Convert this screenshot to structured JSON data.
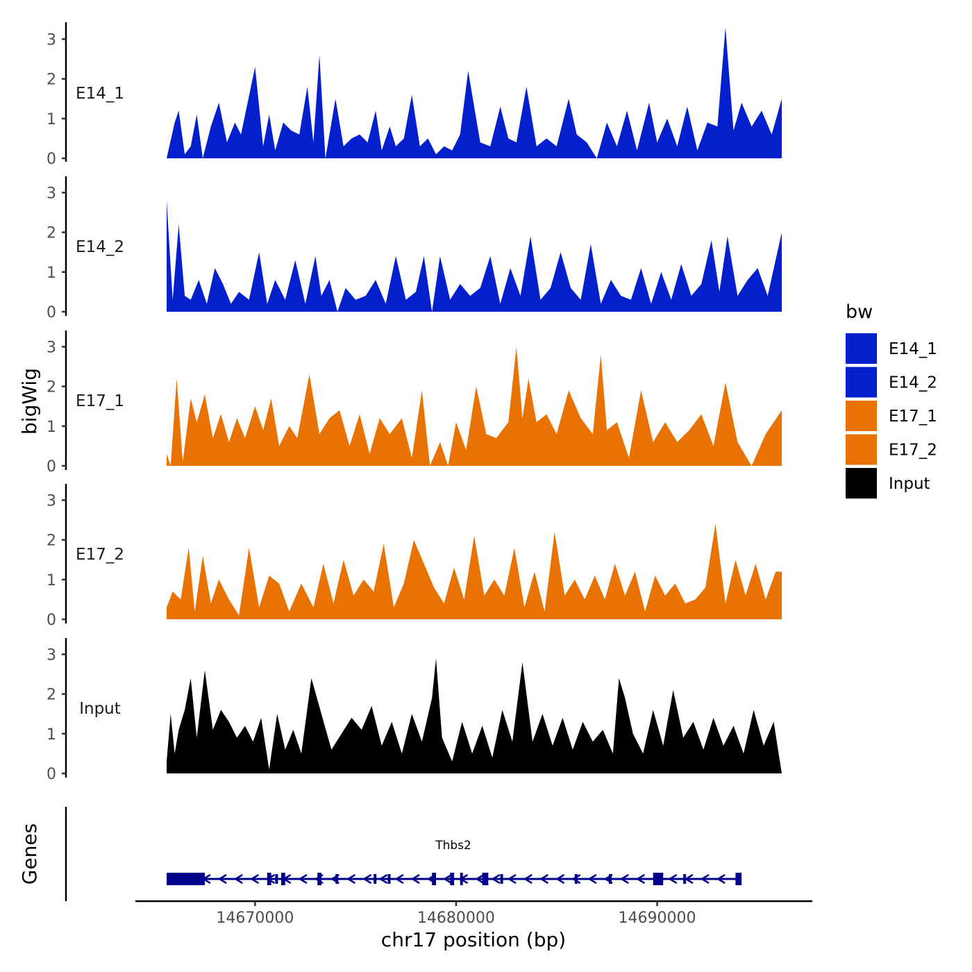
{
  "chart_data": {
    "type": "area",
    "x_min": 14665600,
    "x_max": 14696200,
    "ylim": [
      0,
      3.3
    ],
    "y_ticks": [
      0,
      1,
      2,
      3
    ],
    "x_ticks": [
      14670000,
      14680000,
      14690000
    ],
    "ylabel": "bigWig",
    "genes_label": "Genes",
    "xlabel": "chr17 position (bp)",
    "legend_title": "bw",
    "legend": [
      {
        "label": "E14_1",
        "color": "#0320CC"
      },
      {
        "label": "E14_2",
        "color": "#0320CC"
      },
      {
        "label": "E17_1",
        "color": "#E87204"
      },
      {
        "label": "E17_2",
        "color": "#E87204"
      },
      {
        "label": "Input",
        "color": "#000000"
      }
    ],
    "tracks": [
      {
        "name": "E14_1",
        "color": "#0320CC",
        "x": [
          14665600,
          14666000,
          14666200,
          14666500,
          14666800,
          14667100,
          14667400,
          14667800,
          14668200,
          14668600,
          14669000,
          14669300,
          14670000,
          14670400,
          14670700,
          14671000,
          14671400,
          14671800,
          14672200,
          14672600,
          14672900,
          14673200,
          14673500,
          14674000,
          14674400,
          14674800,
          14675200,
          14675600,
          14676000,
          14676300,
          14676700,
          14677000,
          14677400,
          14677800,
          14678200,
          14678600,
          14679000,
          14679400,
          14679800,
          14680200,
          14680600,
          14681200,
          14681700,
          14682200,
          14682600,
          14683000,
          14683500,
          14684000,
          14684500,
          14685000,
          14685600,
          14686000,
          14686500,
          14687000,
          14687500,
          14688000,
          14688500,
          14689000,
          14689600,
          14690000,
          14690500,
          14691000,
          14691500,
          14692000,
          14692500,
          14693000,
          14693400,
          14693800,
          14694200,
          14694700,
          14695200,
          14695700,
          14696200
        ],
        "values": [
          0.0,
          0.9,
          1.2,
          0.1,
          0.3,
          1.1,
          0.0,
          0.8,
          1.4,
          0.4,
          0.9,
          0.6,
          2.3,
          0.3,
          1.1,
          0.2,
          0.9,
          0.7,
          0.6,
          1.8,
          0.4,
          2.6,
          0.0,
          1.5,
          0.3,
          0.5,
          0.6,
          0.4,
          1.2,
          0.2,
          0.8,
          0.3,
          0.5,
          1.6,
          0.3,
          0.5,
          0.1,
          0.3,
          0.2,
          0.6,
          2.2,
          0.4,
          0.3,
          1.3,
          0.5,
          0.4,
          1.8,
          0.3,
          0.5,
          0.3,
          1.5,
          0.6,
          0.4,
          0.0,
          0.9,
          0.3,
          1.2,
          0.2,
          1.4,
          0.4,
          1.0,
          0.3,
          1.3,
          0.2,
          0.9,
          0.8,
          3.3,
          0.7,
          1.4,
          0.8,
          1.2,
          0.6,
          1.5
        ]
      },
      {
        "name": "E14_2",
        "color": "#0320CC",
        "x": [
          14665600,
          14665900,
          14666200,
          14666500,
          14666800,
          14667200,
          14667600,
          14668000,
          14668400,
          14668800,
          14669200,
          14669700,
          14670200,
          14670600,
          14671000,
          14671500,
          14672000,
          14672500,
          14673000,
          14673300,
          14673700,
          14674100,
          14674500,
          14675000,
          14675500,
          14676000,
          14676500,
          14677000,
          14677500,
          14678000,
          14678400,
          14678800,
          14679200,
          14679700,
          14680200,
          14680700,
          14681200,
          14681700,
          14682200,
          14682700,
          14683200,
          14683700,
          14684200,
          14684700,
          14685200,
          14685700,
          14686200,
          14686700,
          14687200,
          14687700,
          14688200,
          14688700,
          14689200,
          14689700,
          14690200,
          14690700,
          14691200,
          14691700,
          14692200,
          14692700,
          14693100,
          14693500,
          14694000,
          14694500,
          14695000,
          14695500,
          14696200
        ],
        "values": [
          2.8,
          0.3,
          2.2,
          0.4,
          0.3,
          0.8,
          0.2,
          1.1,
          0.7,
          0.2,
          0.5,
          0.3,
          1.5,
          0.2,
          0.8,
          0.3,
          1.3,
          0.2,
          1.4,
          0.4,
          0.8,
          0.0,
          0.6,
          0.3,
          0.4,
          0.8,
          0.2,
          1.4,
          0.3,
          0.5,
          1.4,
          0.0,
          1.4,
          0.3,
          0.7,
          0.4,
          0.6,
          1.4,
          0.2,
          1.1,
          0.4,
          1.9,
          0.3,
          0.6,
          1.5,
          0.6,
          0.3,
          1.7,
          0.2,
          0.8,
          0.4,
          0.3,
          1.1,
          0.2,
          1.0,
          0.3,
          1.2,
          0.4,
          0.7,
          1.8,
          0.5,
          1.9,
          0.4,
          0.8,
          1.1,
          0.4,
          2.0
        ]
      },
      {
        "name": "E17_1",
        "color": "#E87204",
        "x": [
          14665600,
          14665800,
          14666100,
          14666400,
          14666800,
          14667100,
          14667500,
          14667900,
          14668300,
          14668700,
          14669100,
          14669500,
          14670000,
          14670400,
          14670800,
          14671200,
          14671700,
          14672100,
          14672700,
          14673200,
          14673700,
          14674200,
          14674700,
          14675200,
          14675700,
          14676200,
          14676700,
          14677300,
          14677800,
          14678300,
          14678700,
          14679200,
          14679600,
          14680000,
          14680500,
          14681000,
          14681500,
          14682000,
          14682600,
          14683000,
          14683300,
          14683600,
          14684000,
          14684500,
          14685000,
          14685600,
          14686200,
          14686800,
          14687200,
          14687500,
          14688000,
          14688600,
          14689200,
          14689800,
          14690400,
          14691000,
          14691600,
          14692200,
          14692800,
          14693400,
          14694000,
          14694700,
          14695400,
          14696200
        ],
        "values": [
          0.3,
          0.0,
          2.2,
          0.1,
          1.7,
          1.1,
          1.8,
          0.7,
          1.3,
          0.6,
          1.2,
          0.7,
          1.5,
          0.9,
          1.7,
          0.5,
          1.0,
          0.7,
          2.3,
          0.8,
          1.2,
          1.4,
          0.5,
          1.3,
          0.3,
          1.2,
          0.8,
          1.2,
          0.2,
          1.9,
          0.0,
          0.6,
          0.0,
          1.1,
          0.4,
          2.0,
          0.8,
          0.7,
          1.1,
          3.0,
          1.2,
          2.2,
          1.1,
          1.3,
          0.8,
          1.9,
          1.2,
          0.8,
          2.8,
          0.9,
          1.1,
          0.2,
          1.9,
          0.6,
          1.1,
          0.6,
          0.9,
          1.3,
          0.5,
          2.1,
          0.6,
          0.0,
          0.8,
          1.4
        ]
      },
      {
        "name": "E17_2",
        "color": "#E87204",
        "x": [
          14665600,
          14665900,
          14666300,
          14666700,
          14667000,
          14667400,
          14667800,
          14668200,
          14668700,
          14669200,
          14669700,
          14670200,
          14670700,
          14671200,
          14671700,
          14672300,
          14672900,
          14673400,
          14673900,
          14674400,
          14674900,
          14675400,
          14675900,
          14676400,
          14676900,
          14677400,
          14677900,
          14678400,
          14678900,
          14679400,
          14679900,
          14680400,
          14680900,
          14681400,
          14681900,
          14682400,
          14682900,
          14683400,
          14683900,
          14684400,
          14684900,
          14685400,
          14685900,
          14686400,
          14686900,
          14687400,
          14687900,
          14688400,
          14688900,
          14689400,
          14689900,
          14690400,
          14690900,
          14691400,
          14691900,
          14692400,
          14692900,
          14693400,
          14693900,
          14694400,
          14694900,
          14695400,
          14695900,
          14696200
        ],
        "values": [
          0.3,
          0.7,
          0.5,
          1.8,
          0.2,
          1.6,
          0.4,
          1.0,
          0.5,
          0.1,
          1.8,
          0.3,
          1.1,
          0.9,
          0.2,
          0.9,
          0.3,
          1.4,
          0.4,
          1.5,
          0.6,
          1.0,
          0.7,
          1.9,
          0.3,
          0.9,
          2.0,
          1.4,
          0.8,
          0.4,
          1.3,
          0.5,
          2.1,
          0.6,
          1.0,
          0.6,
          1.8,
          0.3,
          1.2,
          0.2,
          2.2,
          0.6,
          1.0,
          0.5,
          1.1,
          0.5,
          1.4,
          0.6,
          1.2,
          0.2,
          1.1,
          0.6,
          0.9,
          0.4,
          0.5,
          0.8,
          2.4,
          0.4,
          1.5,
          0.6,
          1.4,
          0.5,
          1.2,
          1.2
        ]
      },
      {
        "name": "Input",
        "color": "#000000",
        "x": [
          14665600,
          14665800,
          14666000,
          14666200,
          14666500,
          14666800,
          14667100,
          14667500,
          14667900,
          14668300,
          14668700,
          14669100,
          14669500,
          14669900,
          14670300,
          14670700,
          14671100,
          14671500,
          14671900,
          14672300,
          14672800,
          14673300,
          14673800,
          14674300,
          14674800,
          14675300,
          14675800,
          14676300,
          14676800,
          14677300,
          14677800,
          14678300,
          14678800,
          14679000,
          14679300,
          14679800,
          14680300,
          14680800,
          14681300,
          14681800,
          14682300,
          14682800,
          14683300,
          14683800,
          14684300,
          14684800,
          14685300,
          14685800,
          14686300,
          14686800,
          14687300,
          14687800,
          14688100,
          14688400,
          14688800,
          14689300,
          14689800,
          14690300,
          14690800,
          14691300,
          14691800,
          14692300,
          14692800,
          14693300,
          14693800,
          14694300,
          14694800,
          14695300,
          14695800,
          14696200
        ],
        "values": [
          0.3,
          1.5,
          0.5,
          1.1,
          1.6,
          2.4,
          0.9,
          2.6,
          1.1,
          1.6,
          1.3,
          0.9,
          1.2,
          0.8,
          1.4,
          0.1,
          1.5,
          0.6,
          1.1,
          0.5,
          2.4,
          1.5,
          0.6,
          1.0,
          1.4,
          1.1,
          1.7,
          0.7,
          1.3,
          0.5,
          1.5,
          0.8,
          1.9,
          2.9,
          0.9,
          0.3,
          1.3,
          0.5,
          1.2,
          0.4,
          1.6,
          0.8,
          2.8,
          0.8,
          1.5,
          0.7,
          1.4,
          0.6,
          1.3,
          0.8,
          1.1,
          0.5,
          2.4,
          1.9,
          1.0,
          0.5,
          1.6,
          0.7,
          2.1,
          0.9,
          1.3,
          0.6,
          1.4,
          0.7,
          1.2,
          0.5,
          1.6,
          0.7,
          1.3,
          0.0
        ]
      }
    ],
    "gene": {
      "name": "Thbs2",
      "color": "#00008B",
      "start": 14665600,
      "end": 14694200,
      "strand": "-",
      "exons": [
        {
          "start": 14665600,
          "end": 14667500,
          "thick": true
        },
        {
          "start": 14670600,
          "end": 14670800,
          "thick": true
        },
        {
          "start": 14671000,
          "end": 14671100,
          "thick": false
        },
        {
          "start": 14671300,
          "end": 14671500,
          "thick": true
        },
        {
          "start": 14673100,
          "end": 14673300,
          "thick": true
        },
        {
          "start": 14674000,
          "end": 14674100,
          "thick": false
        },
        {
          "start": 14675900,
          "end": 14676000,
          "thick": false
        },
        {
          "start": 14676600,
          "end": 14676700,
          "thick": false
        },
        {
          "start": 14678800,
          "end": 14679000,
          "thick": true
        },
        {
          "start": 14679700,
          "end": 14679900,
          "thick": true
        },
        {
          "start": 14680200,
          "end": 14680300,
          "thick": true
        },
        {
          "start": 14681300,
          "end": 14681600,
          "thick": true
        },
        {
          "start": 14682200,
          "end": 14682300,
          "thick": false
        },
        {
          "start": 14685900,
          "end": 14686000,
          "thick": false
        },
        {
          "start": 14687600,
          "end": 14687700,
          "thick": false
        },
        {
          "start": 14689800,
          "end": 14690300,
          "thick": true
        },
        {
          "start": 14691300,
          "end": 14691400,
          "thick": false
        },
        {
          "start": 14693900,
          "end": 14694200,
          "thick": true
        }
      ]
    }
  }
}
